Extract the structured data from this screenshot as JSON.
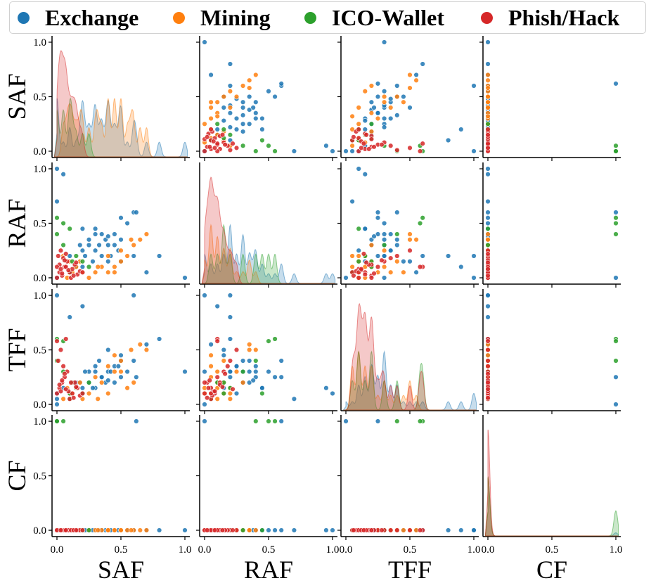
{
  "legend": {
    "items": [
      {
        "label": "Exchange",
        "color": "#1f77b4"
      },
      {
        "label": "Mining",
        "color": "#ff7f0e"
      },
      {
        "label": "ICO-Wallet",
        "color": "#2ca02c"
      },
      {
        "label": "Phish/Hack",
        "color": "#d62728"
      }
    ]
  },
  "chart_data": {
    "type": "scatter",
    "subtype": "pairplot",
    "variables": [
      "SAF",
      "RAF",
      "TFF",
      "CF"
    ],
    "axis_range": [
      0,
      1
    ],
    "ticks": [
      "0.0",
      "0.5",
      "1.0"
    ],
    "tick_values": [
      0,
      0.5,
      1
    ],
    "diagonal": "kde",
    "grid": false,
    "legend_position": "top",
    "series": [
      {
        "name": "Exchange",
        "color": "#1f77b4",
        "points": [
          [
            1.0,
            0.0,
            0.3,
            0.0
          ],
          [
            0.6,
            0.2,
            1.0,
            0.0
          ],
          [
            0.8,
            0.2,
            0.6,
            0.0
          ],
          [
            0.6,
            0.6,
            0.4,
            0.0
          ],
          [
            0.55,
            0.5,
            0.3,
            0.0
          ],
          [
            0.5,
            0.55,
            0.25,
            0.0
          ],
          [
            0.45,
            0.4,
            0.35,
            0.0
          ],
          [
            0.4,
            0.3,
            0.3,
            0.0
          ],
          [
            0.38,
            0.35,
            0.2,
            0.0
          ],
          [
            0.35,
            0.2,
            0.25,
            0.0
          ],
          [
            0.3,
            0.45,
            0.15,
            0.0
          ],
          [
            0.25,
            0.3,
            0.2,
            0.0
          ],
          [
            0.2,
            0.25,
            0.1,
            0.0
          ],
          [
            0.15,
            0.1,
            0.2,
            0.0
          ],
          [
            0.45,
            0.3,
            0.2,
            0.0
          ],
          [
            0.5,
            0.35,
            0.4,
            0.0
          ],
          [
            0.3,
            0.25,
            0.35,
            0.0
          ],
          [
            0.62,
            0.6,
            0.25,
            1.0
          ],
          [
            0.2,
            0.45,
            0.15,
            0.0
          ],
          [
            0.1,
            0.05,
            0.1,
            0.0
          ],
          [
            0.0,
            1.0,
            0.1,
            0.0
          ],
          [
            0.05,
            0.95,
            0.15,
            0.0
          ],
          [
            0.0,
            0.7,
            0.05,
            0.0
          ],
          [
            0.4,
            0.15,
            0.5,
            0.0
          ],
          [
            0.7,
            0.05,
            0.55,
            0.0
          ],
          [
            0.2,
            0.1,
            0.9,
            0.0
          ],
          [
            0.0,
            0.0,
            1.0,
            0.0
          ],
          [
            0.1,
            0.2,
            0.8,
            0.0
          ],
          [
            0.0,
            0.0,
            0.0,
            1.0
          ],
          [
            0.3,
            0.4,
            0.3,
            0.0
          ],
          [
            0.25,
            0.35,
            0.3,
            0.0
          ],
          [
            0.35,
            0.4,
            0.25,
            0.0
          ],
          [
            0.42,
            0.2,
            0.3,
            0.0
          ],
          [
            0.28,
            0.15,
            0.15,
            0.0
          ],
          [
            0.18,
            0.3,
            0.2,
            0.0
          ],
          [
            0.5,
            0.15,
            0.45,
            0.0
          ],
          [
            0.33,
            0.3,
            0.4,
            0.0
          ],
          [
            0.22,
            0.2,
            0.3,
            0.0
          ],
          [
            0.48,
            0.25,
            0.35,
            0.0
          ],
          [
            0.4,
            0.38,
            0.22,
            0.0
          ]
        ]
      },
      {
        "name": "Mining",
        "color": "#ff7f0e",
        "points": [
          [
            0.7,
            0.4,
            0.5,
            0.0
          ],
          [
            0.65,
            0.35,
            0.55,
            0.0
          ],
          [
            0.6,
            0.3,
            0.2,
            0.0
          ],
          [
            0.55,
            0.2,
            0.15,
            0.0
          ],
          [
            0.5,
            0.15,
            0.4,
            0.0
          ],
          [
            0.45,
            0.1,
            0.3,
            0.0
          ],
          [
            0.4,
            0.05,
            0.35,
            0.0
          ],
          [
            0.35,
            0.1,
            0.2,
            0.0
          ],
          [
            0.3,
            0.05,
            0.25,
            0.0
          ],
          [
            0.25,
            0.0,
            0.1,
            0.0
          ],
          [
            0.2,
            0.05,
            0.05,
            0.0
          ],
          [
            0.15,
            0.1,
            0.15,
            0.0
          ],
          [
            0.1,
            0.15,
            0.1,
            0.0
          ],
          [
            0.05,
            0.2,
            0.05,
            0.0
          ],
          [
            0.4,
            0.2,
            0.1,
            0.0
          ],
          [
            0.45,
            0.05,
            0.45,
            0.0
          ],
          [
            0.5,
            0.25,
            0.3,
            0.0
          ],
          [
            0.58,
            0.35,
            0.5,
            0.0
          ],
          [
            0.32,
            0.1,
            0.05,
            0.0
          ],
          [
            0.12,
            0.05,
            0.1,
            0.0
          ],
          [
            0.08,
            0.0,
            0.15,
            0.0
          ],
          [
            0.18,
            0.15,
            0.2,
            0.0
          ]
        ]
      },
      {
        "name": "ICO-Wallet",
        "color": "#2ca02c",
        "points": [
          [
            0.0,
            0.55,
            0.6,
            1.0
          ],
          [
            0.05,
            0.5,
            0.58,
            1.0
          ],
          [
            0.1,
            0.45,
            0.1,
            0.0
          ],
          [
            0.15,
            0.2,
            0.15,
            0.0
          ],
          [
            0.2,
            0.15,
            0.1,
            0.0
          ],
          [
            0.25,
            0.1,
            0.2,
            0.0
          ],
          [
            0.05,
            0.3,
            0.3,
            0.0
          ],
          [
            0.1,
            0.05,
            0.05,
            0.0
          ],
          [
            0.0,
            0.4,
            0.4,
            1.0
          ],
          [
            0.12,
            0.15,
            0.2,
            0.0
          ]
        ]
      },
      {
        "name": "Phish/Hack",
        "color": "#d62728",
        "points": [
          [
            0.0,
            0.0,
            0.1,
            0.0
          ],
          [
            0.02,
            0.05,
            0.15,
            0.0
          ],
          [
            0.04,
            0.02,
            0.2,
            0.0
          ],
          [
            0.06,
            0.1,
            0.25,
            0.0
          ],
          [
            0.08,
            0.15,
            0.3,
            0.0
          ],
          [
            0.1,
            0.05,
            0.05,
            0.0
          ],
          [
            0.12,
            0.08,
            0.1,
            0.0
          ],
          [
            0.14,
            0.12,
            0.2,
            0.0
          ],
          [
            0.16,
            0.03,
            0.15,
            0.0
          ],
          [
            0.18,
            0.06,
            0.08,
            0.0
          ],
          [
            0.01,
            0.2,
            0.4,
            0.0
          ],
          [
            0.03,
            0.25,
            0.5,
            0.0
          ],
          [
            0.05,
            0.18,
            0.35,
            0.0
          ],
          [
            0.07,
            0.1,
            0.6,
            0.0
          ],
          [
            0.09,
            0.07,
            0.12,
            0.0
          ],
          [
            0.02,
            0.12,
            0.18,
            0.0
          ],
          [
            0.04,
            0.04,
            0.22,
            0.0
          ],
          [
            0.06,
            0.16,
            0.28,
            0.0
          ],
          [
            0.0,
            0.1,
            0.58,
            0.0
          ],
          [
            0.2,
            0.05,
            0.1,
            0.0
          ],
          [
            0.11,
            0.0,
            0.2,
            0.0
          ],
          [
            0.13,
            0.02,
            0.06,
            0.0
          ],
          [
            0.15,
            0.14,
            0.16,
            0.0
          ],
          [
            0.03,
            0.08,
            0.12,
            0.0
          ],
          [
            0.07,
            0.22,
            0.14,
            0.0
          ]
        ]
      }
    ]
  }
}
